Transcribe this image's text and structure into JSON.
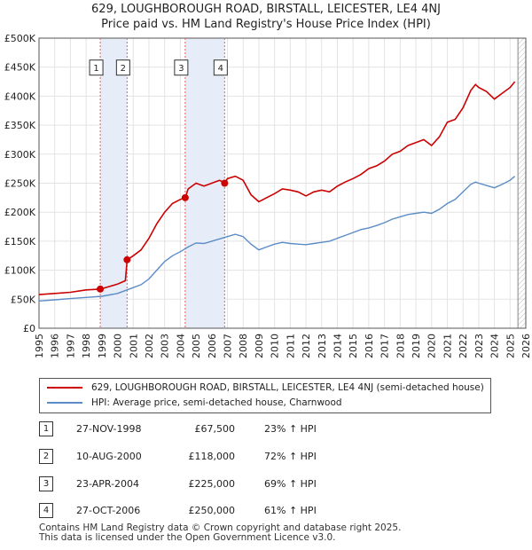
{
  "chart_data": {
    "type": "line",
    "title": "629, LOUGHBOROUGH ROAD, BIRSTALL, LEICESTER, LE4 4NJ",
    "subtitle": "Price paid vs. HM Land Registry's House Price Index (HPI)",
    "xlim": [
      1995,
      2026
    ],
    "ylim": [
      0,
      500000
    ],
    "x_ticks": [
      "1995",
      "1996",
      "1997",
      "1998",
      "1999",
      "2000",
      "2001",
      "2002",
      "2003",
      "2004",
      "2005",
      "2006",
      "2007",
      "2008",
      "2009",
      "2010",
      "2011",
      "2012",
      "2013",
      "2014",
      "2015",
      "2016",
      "2017",
      "2018",
      "2019",
      "2020",
      "2021",
      "2022",
      "2023",
      "2024",
      "2025",
      "2026"
    ],
    "y_ticks": [
      {
        "value": 0,
        "label": "£0"
      },
      {
        "value": 50000,
        "label": "£50K"
      },
      {
        "value": 100000,
        "label": "£100K"
      },
      {
        "value": 150000,
        "label": "£150K"
      },
      {
        "value": 200000,
        "label": "£200K"
      },
      {
        "value": 250000,
        "label": "£250K"
      },
      {
        "value": 300000,
        "label": "£300K"
      },
      {
        "value": 350000,
        "label": "£350K"
      },
      {
        "value": 400000,
        "label": "£400K"
      },
      {
        "value": 450000,
        "label": "£450K"
      },
      {
        "value": 500000,
        "label": "£500K"
      }
    ],
    "grid": true,
    "series": [
      {
        "name": "629, LOUGHBOROUGH ROAD, BIRSTALL, LEICESTER, LE4 4NJ (semi-detached house)",
        "color": "#cc0000",
        "points": [
          [
            1995.0,
            58000
          ],
          [
            1996.0,
            60000
          ],
          [
            1997.0,
            62000
          ],
          [
            1998.0,
            66000
          ],
          [
            1998.9,
            67500
          ],
          [
            1999.5,
            72000
          ],
          [
            2000.0,
            76000
          ],
          [
            2000.5,
            82000
          ],
          [
            2000.61,
            118000
          ],
          [
            2001.0,
            125000
          ],
          [
            2001.5,
            135000
          ],
          [
            2002.0,
            155000
          ],
          [
            2002.5,
            180000
          ],
          [
            2003.0,
            200000
          ],
          [
            2003.5,
            215000
          ],
          [
            2004.0,
            222000
          ],
          [
            2004.31,
            225000
          ],
          [
            2004.5,
            240000
          ],
          [
            2005.0,
            250000
          ],
          [
            2005.5,
            245000
          ],
          [
            2006.0,
            250000
          ],
          [
            2006.5,
            255000
          ],
          [
            2006.82,
            250000
          ],
          [
            2007.0,
            258000
          ],
          [
            2007.5,
            262000
          ],
          [
            2008.0,
            255000
          ],
          [
            2008.5,
            230000
          ],
          [
            2009.0,
            218000
          ],
          [
            2009.5,
            225000
          ],
          [
            2010.0,
            232000
          ],
          [
            2010.5,
            240000
          ],
          [
            2011.0,
            238000
          ],
          [
            2011.5,
            235000
          ],
          [
            2012.0,
            228000
          ],
          [
            2012.5,
            235000
          ],
          [
            2013.0,
            238000
          ],
          [
            2013.5,
            235000
          ],
          [
            2014.0,
            245000
          ],
          [
            2014.5,
            252000
          ],
          [
            2015.0,
            258000
          ],
          [
            2015.5,
            265000
          ],
          [
            2016.0,
            275000
          ],
          [
            2016.5,
            280000
          ],
          [
            2017.0,
            288000
          ],
          [
            2017.5,
            300000
          ],
          [
            2018.0,
            305000
          ],
          [
            2018.5,
            315000
          ],
          [
            2019.0,
            320000
          ],
          [
            2019.5,
            325000
          ],
          [
            2020.0,
            315000
          ],
          [
            2020.5,
            330000
          ],
          [
            2021.0,
            355000
          ],
          [
            2021.5,
            360000
          ],
          [
            2022.0,
            380000
          ],
          [
            2022.5,
            410000
          ],
          [
            2022.8,
            420000
          ],
          [
            2023.0,
            415000
          ],
          [
            2023.5,
            408000
          ],
          [
            2024.0,
            395000
          ],
          [
            2024.5,
            405000
          ],
          [
            2025.0,
            415000
          ],
          [
            2025.3,
            425000
          ]
        ]
      },
      {
        "name": "HPI: Average price, semi-detached house, Charnwood",
        "color": "#5b8cc7",
        "points": [
          [
            1995.0,
            47000
          ],
          [
            1996.0,
            49000
          ],
          [
            1997.0,
            51000
          ],
          [
            1998.0,
            53000
          ],
          [
            1999.0,
            55000
          ],
          [
            2000.0,
            60000
          ],
          [
            2000.6,
            66000
          ],
          [
            2001.0,
            70000
          ],
          [
            2001.5,
            75000
          ],
          [
            2002.0,
            85000
          ],
          [
            2002.5,
            100000
          ],
          [
            2003.0,
            115000
          ],
          [
            2003.5,
            125000
          ],
          [
            2004.0,
            132000
          ],
          [
            2004.5,
            140000
          ],
          [
            2005.0,
            147000
          ],
          [
            2005.5,
            146000
          ],
          [
            2006.0,
            150000
          ],
          [
            2006.5,
            154000
          ],
          [
            2007.0,
            158000
          ],
          [
            2007.5,
            162000
          ],
          [
            2008.0,
            158000
          ],
          [
            2008.5,
            145000
          ],
          [
            2009.0,
            135000
          ],
          [
            2009.5,
            140000
          ],
          [
            2010.0,
            145000
          ],
          [
            2010.5,
            148000
          ],
          [
            2011.0,
            146000
          ],
          [
            2011.5,
            145000
          ],
          [
            2012.0,
            144000
          ],
          [
            2012.5,
            146000
          ],
          [
            2013.0,
            148000
          ],
          [
            2013.5,
            150000
          ],
          [
            2014.0,
            155000
          ],
          [
            2014.5,
            160000
          ],
          [
            2015.0,
            165000
          ],
          [
            2015.5,
            170000
          ],
          [
            2016.0,
            173000
          ],
          [
            2016.5,
            177000
          ],
          [
            2017.0,
            182000
          ],
          [
            2017.5,
            188000
          ],
          [
            2018.0,
            192000
          ],
          [
            2018.5,
            196000
          ],
          [
            2019.0,
            198000
          ],
          [
            2019.5,
            200000
          ],
          [
            2020.0,
            198000
          ],
          [
            2020.5,
            205000
          ],
          [
            2021.0,
            215000
          ],
          [
            2021.5,
            222000
          ],
          [
            2022.0,
            235000
          ],
          [
            2022.5,
            248000
          ],
          [
            2022.8,
            252000
          ],
          [
            2023.0,
            250000
          ],
          [
            2023.5,
            246000
          ],
          [
            2024.0,
            242000
          ],
          [
            2024.5,
            248000
          ],
          [
            2025.0,
            255000
          ],
          [
            2025.3,
            262000
          ]
        ]
      }
    ],
    "sale_markers": [
      {
        "id": "1",
        "x": 1998.9,
        "y": 67500
      },
      {
        "id": "2",
        "x": 2000.61,
        "y": 118000
      },
      {
        "id": "3",
        "x": 2004.31,
        "y": 225000
      },
      {
        "id": "4",
        "x": 2006.82,
        "y": 250000
      }
    ],
    "shaded_ranges": [
      [
        1998.9,
        2000.61
      ],
      [
        2004.31,
        2006.82
      ]
    ],
    "forecast_start": 2025.5,
    "marker_label_y": 450000
  },
  "transactions": [
    {
      "id": "1",
      "date": "27-NOV-1998",
      "price": "£67,500",
      "hpi": "23% ↑ HPI"
    },
    {
      "id": "2",
      "date": "10-AUG-2000",
      "price": "£118,000",
      "hpi": "72% ↑ HPI"
    },
    {
      "id": "3",
      "date": "23-APR-2004",
      "price": "£225,000",
      "hpi": "69% ↑ HPI"
    },
    {
      "id": "4",
      "date": "27-OCT-2006",
      "price": "£250,000",
      "hpi": "61% ↑ HPI"
    }
  ],
  "footer": {
    "line1": "Contains HM Land Registry data © Crown copyright and database right 2025.",
    "line2": "This data is licensed under the Open Government Licence v3.0."
  }
}
